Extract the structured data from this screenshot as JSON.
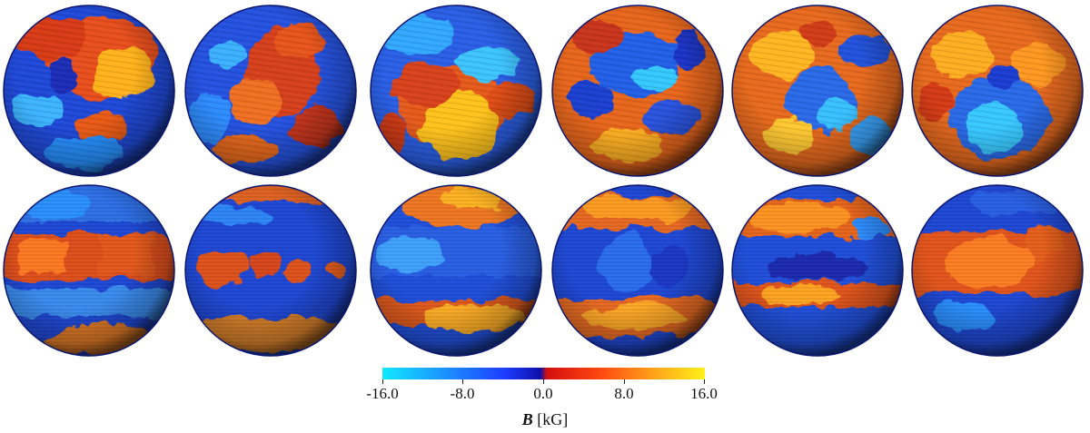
{
  "colorbar": {
    "ticks": [
      "-16.0",
      "-8.0",
      "0.0",
      "8.0",
      "16.0"
    ],
    "symbol": "B",
    "unit": "[kG]",
    "colors": [
      "#12e8ff",
      "#1c86ff",
      "#1d3dff",
      "#0c0fa8",
      "#d40f10",
      "#ff4a10",
      "#ffa21a",
      "#fff11a"
    ]
  },
  "panels": {
    "top_row": [
      "polar-view-1",
      "polar-view-2",
      "polar-view-3",
      "polar-view-4",
      "polar-view-5",
      "polar-view-6"
    ],
    "bottom_row": [
      "equatorial-view-1",
      "equatorial-view-2",
      "equatorial-view-3",
      "equatorial-view-4",
      "equatorial-view-5",
      "equatorial-view-6"
    ]
  }
}
